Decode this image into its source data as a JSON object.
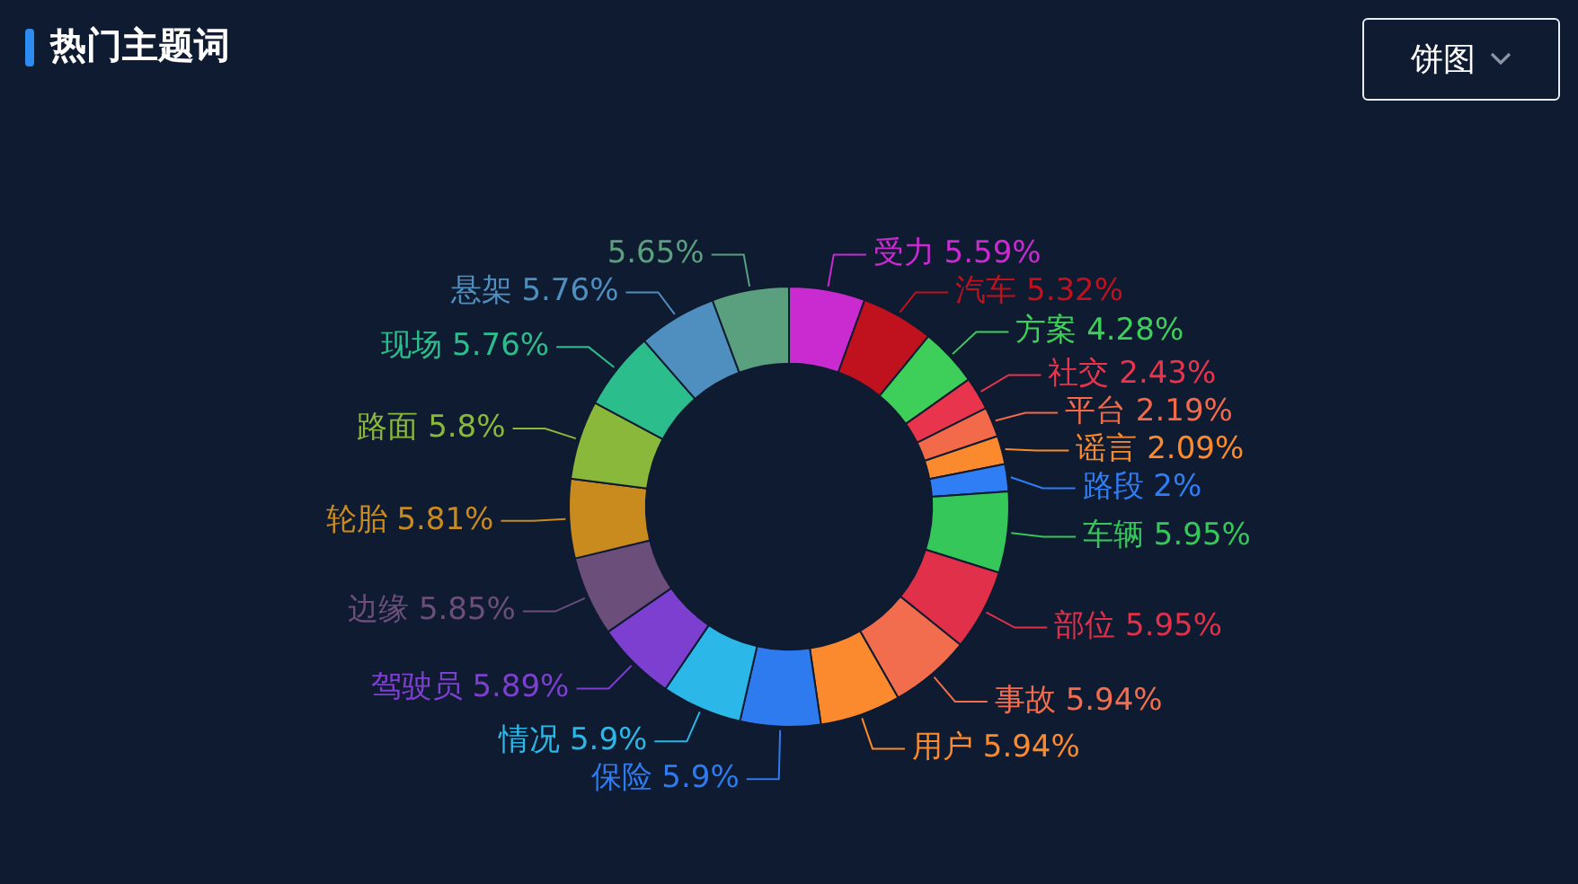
{
  "chart_data": {
    "type": "donut",
    "title": "热门主题词",
    "categories": [
      "受力",
      "汽车",
      "方案",
      "社交",
      "平台",
      "谣言",
      "路段",
      "车辆",
      "部位",
      "事故",
      "用户",
      "保险",
      "情况",
      "驾驶员",
      "边缘",
      "轮胎",
      "路面",
      "现场",
      "悬架",
      null
    ],
    "values": [
      5.59,
      5.32,
      4.28,
      2.43,
      2.19,
      2.09,
      2,
      5.95,
      5.95,
      5.94,
      5.94,
      5.9,
      5.9,
      5.89,
      5.85,
      5.81,
      5.8,
      5.76,
      5.76,
      5.65
    ],
    "value_labels": [
      "5.59%",
      "5.32%",
      "4.28%",
      "2.43%",
      "2.19%",
      "2.09%",
      "2%",
      "5.95%",
      "5.95%",
      "5.94%",
      "5.94%",
      "5.9%",
      "5.9%",
      "5.89%",
      "5.85%",
      "5.81%",
      "5.8%",
      "5.76%",
      "5.76%",
      "5.65%"
    ],
    "colors": [
      "#c92bd0",
      "#c0111f",
      "#3ecf5b",
      "#e8344c",
      "#f26a4a",
      "#fb8a2e",
      "#2f7ef6",
      "#35c75a",
      "#e0304a",
      "#f26d4d",
      "#fb8a2e",
      "#2e7bf0",
      "#2bb8e8",
      "#7d3fcf",
      "#6b4e7a",
      "#c98a1e",
      "#8ab83a",
      "#2bbd8c",
      "#4f8fc0",
      "#5aa07e"
    ],
    "annotations": [
      "饼图"
    ]
  }
}
